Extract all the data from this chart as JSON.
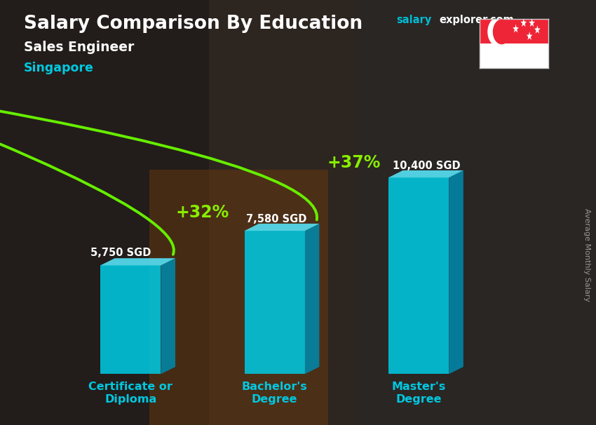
{
  "subtitle_job": "Sales Engineer",
  "subtitle_country": "Singapore",
  "ylabel_rotated": "Average Monthly Salary",
  "categories": [
    "Certificate or\nDiploma",
    "Bachelor's\nDegree",
    "Master's\nDegree"
  ],
  "values": [
    5750,
    7580,
    10400
  ],
  "value_labels": [
    "5,750 SGD",
    "7,580 SGD",
    "10,400 SGD"
  ],
  "pct_labels": [
    "+32%",
    "+37%"
  ],
  "bar_color_face": "#00c8e0",
  "bar_color_side": "#0088aa",
  "bar_color_top": "#55ddf0",
  "arrow_color": "#66ee00",
  "bg_color": "#3a3028",
  "title_color": "#ffffff",
  "salary_web_color": "#00bcd4",
  "subtitle_job_color": "#ffffff",
  "subtitle_country_color": "#00c8e0",
  "value_label_color": "#ffffff",
  "pct_label_color": "#88ee00",
  "xticklabel_color": "#00c8e0",
  "ylabel_color": "#aaaaaa",
  "bar_width": 0.42,
  "bar_positions": [
    1.0,
    2.0,
    3.0
  ],
  "xlim": [
    0.3,
    3.9
  ],
  "ylim": [
    0,
    13500
  ],
  "figsize": [
    8.5,
    6.06
  ],
  "dpi": 100
}
